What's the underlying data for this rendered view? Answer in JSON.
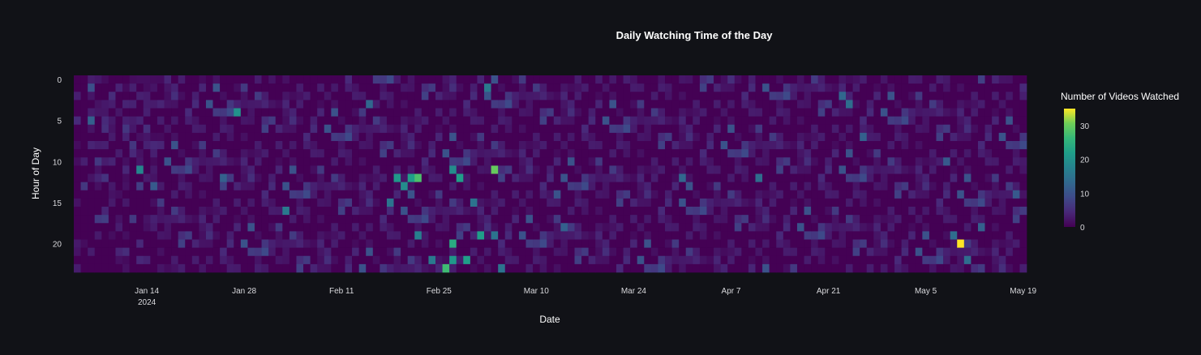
{
  "chart_data": {
    "type": "heatmap",
    "title": "Daily Watching Time of the Day",
    "xlabel": "Date",
    "ylabel": "Hour of Day",
    "x_start": "2024-01-04",
    "x_end": "2024-05-19",
    "x_ticks": [
      {
        "date": "2024-01-14",
        "label": "Jan 14",
        "sublabel": "2024"
      },
      {
        "date": "2024-01-28",
        "label": "Jan 28",
        "sublabel": ""
      },
      {
        "date": "2024-02-11",
        "label": "Feb 11",
        "sublabel": ""
      },
      {
        "date": "2024-02-25",
        "label": "Feb 25",
        "sublabel": ""
      },
      {
        "date": "2024-03-10",
        "label": "Mar 10",
        "sublabel": ""
      },
      {
        "date": "2024-03-24",
        "label": "Mar 24",
        "sublabel": ""
      },
      {
        "date": "2024-04-07",
        "label": "Apr 7",
        "sublabel": ""
      },
      {
        "date": "2024-04-21",
        "label": "Apr 21",
        "sublabel": ""
      },
      {
        "date": "2024-05-05",
        "label": "May 5",
        "sublabel": ""
      },
      {
        "date": "2024-05-19",
        "label": "May 19",
        "sublabel": ""
      }
    ],
    "y_range": [
      0,
      23
    ],
    "y_ticks": [
      "0",
      "5",
      "10",
      "15",
      "20"
    ],
    "colorbar": {
      "title": "Number of Videos Watched",
      "min": 0,
      "max": 35,
      "ticks": [
        "0",
        "10",
        "20",
        "30"
      ],
      "colorscale": "viridis"
    },
    "notable_cells": [
      {
        "date": "2024-05-10",
        "hour": 20,
        "value": 35
      },
      {
        "date": "2024-02-26",
        "hour": 23,
        "value": 27
      },
      {
        "date": "2024-03-04",
        "hour": 11,
        "value": 30
      },
      {
        "date": "2024-02-22",
        "hour": 12,
        "value": 28
      },
      {
        "date": "2024-02-21",
        "hour": 12,
        "value": 22
      },
      {
        "date": "2024-02-27",
        "hour": 20,
        "value": 24
      },
      {
        "date": "2024-02-28",
        "hour": 12,
        "value": 22
      },
      {
        "date": "2024-02-27",
        "hour": 22,
        "value": 21
      },
      {
        "date": "2024-02-29",
        "hour": 22,
        "value": 22
      },
      {
        "date": "2024-03-02",
        "hour": 19,
        "value": 22
      },
      {
        "date": "2024-02-27",
        "hour": 11,
        "value": 19
      },
      {
        "date": "2024-02-19",
        "hour": 12,
        "value": 21
      },
      {
        "date": "2024-02-20",
        "hour": 13,
        "value": 19
      },
      {
        "date": "2024-01-27",
        "hour": 4,
        "value": 20
      },
      {
        "date": "2024-01-13",
        "hour": 11,
        "value": 18
      },
      {
        "date": "2024-02-03",
        "hour": 16,
        "value": 16
      },
      {
        "date": "2024-02-18",
        "hour": 15,
        "value": 15
      },
      {
        "date": "2024-03-01",
        "hour": 15,
        "value": 15
      },
      {
        "date": "2024-02-22",
        "hour": 19,
        "value": 17
      },
      {
        "date": "2024-02-24",
        "hour": 22,
        "value": 16
      },
      {
        "date": "2024-03-03",
        "hour": 1,
        "value": 16
      },
      {
        "date": "2024-03-05",
        "hour": 23,
        "value": 15
      },
      {
        "date": "2024-03-04",
        "hour": 19,
        "value": 15
      },
      {
        "date": "2024-04-24",
        "hour": 3,
        "value": 14
      },
      {
        "date": "2024-04-23",
        "hour": 2,
        "value": 13
      },
      {
        "date": "2024-04-11",
        "hour": 12,
        "value": 14
      },
      {
        "date": "2024-05-09",
        "hour": 19,
        "value": 14
      },
      {
        "date": "2024-05-11",
        "hour": 22,
        "value": 14
      },
      {
        "date": "2024-03-31",
        "hour": 12,
        "value": 13
      },
      {
        "date": "2024-03-14",
        "hour": 18,
        "value": 12
      },
      {
        "date": "2024-05-13",
        "hour": 18,
        "value": 12
      },
      {
        "date": "2024-04-26",
        "hour": 7,
        "value": 12
      },
      {
        "date": "2024-05-08",
        "hour": 10,
        "value": 11
      },
      {
        "date": "2024-01-06",
        "hour": 5,
        "value": 12
      },
      {
        "date": "2024-01-25",
        "hour": 12,
        "value": 12
      },
      {
        "date": "2024-01-15",
        "hour": 13,
        "value": 11
      },
      {
        "date": "2024-02-15",
        "hour": 3,
        "value": 13
      },
      {
        "date": "2024-03-13",
        "hour": 14,
        "value": 10
      },
      {
        "date": "2024-05-18",
        "hour": 14,
        "value": 11
      }
    ]
  }
}
